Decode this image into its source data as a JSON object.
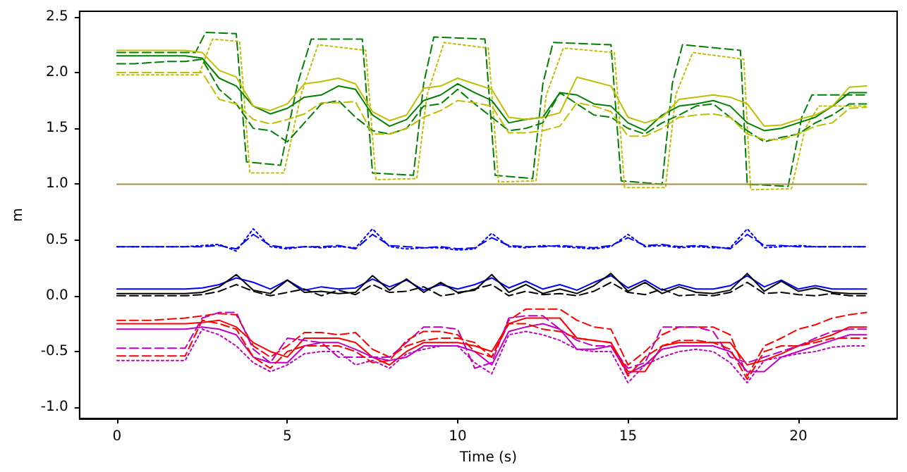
{
  "chart_data": {
    "type": "line",
    "xlabel": "Time (s)",
    "ylabel": "m",
    "xlim": [
      -1.1,
      22.9
    ],
    "ylim": [
      -1.1,
      2.55
    ],
    "xticks": [
      0,
      5,
      10,
      15,
      20
    ],
    "yticks": [
      {
        "value": -1,
        "label": "-1.0"
      },
      {
        "value": -0.5,
        "label": "-0.5"
      },
      {
        "value": 0,
        "label": "0.0"
      },
      {
        "value": 0.5,
        "label": "0.5"
      },
      {
        "value": 1,
        "label": "1.0"
      },
      {
        "value": 1.5,
        "label": "1.5"
      },
      {
        "value": 2,
        "label": "2.0"
      },
      {
        "value": 2.5,
        "label": "2.5"
      }
    ],
    "x": [
      0,
      0.5,
      1,
      1.5,
      2,
      2.5,
      3,
      3.5,
      4,
      4.5,
      5,
      5.5,
      6,
      6.5,
      7,
      7.5,
      8,
      8.5,
      9,
      9.5,
      10,
      10.5,
      11,
      11.5,
      12,
      12.5,
      13,
      13.5,
      14,
      14.5,
      15,
      15.5,
      16,
      16.5,
      17,
      17.5,
      18,
      18.5,
      19,
      19.5,
      20,
      20.5,
      21,
      21.5,
      22
    ],
    "series": [
      {
        "color": "#008000",
        "line_style": "dashed",
        "x": [
          0,
          2.3,
          2.6,
          3.5,
          3.8,
          4.8,
          5.3,
          5.7,
          7.2,
          7.5,
          8.7,
          9.0,
          9.3,
          10.8,
          11.1,
          12.2,
          12.5,
          12.8,
          14.5,
          14.8,
          16.0,
          16.3,
          16.6,
          18.3,
          18.5,
          19.7,
          20.1,
          20.4,
          22
        ],
        "values": [
          2.18,
          2.18,
          2.36,
          2.35,
          1.2,
          1.17,
          1.9,
          2.3,
          2.3,
          1.1,
          1.08,
          1.9,
          2.32,
          2.3,
          1.08,
          1.05,
          1.9,
          2.27,
          2.25,
          1.03,
          1.0,
          1.9,
          2.25,
          2.2,
          1.0,
          0.98,
          1.6,
          1.8,
          1.8
        ]
      },
      {
        "color": "#bfbf00",
        "line_style": "dotted",
        "x": [
          0,
          2.4,
          2.8,
          3.6,
          3.9,
          4.9,
          5.4,
          5.9,
          7.3,
          7.6,
          8.8,
          9.1,
          9.6,
          10.9,
          11.2,
          12.3,
          12.6,
          13.1,
          14.6,
          14.9,
          16.1,
          16.4,
          16.9,
          18.4,
          18.6,
          19.8,
          20.2,
          20.6,
          22
        ],
        "values": [
          1.98,
          1.98,
          2.3,
          2.28,
          1.1,
          1.1,
          1.8,
          2.25,
          2.2,
          1.04,
          1.05,
          1.8,
          2.27,
          2.22,
          1.02,
          1.03,
          1.8,
          2.22,
          2.18,
          0.97,
          0.97,
          1.8,
          2.18,
          2.12,
          0.95,
          0.96,
          1.5,
          1.7,
          1.7
        ]
      },
      {
        "color": "#008000",
        "line_style": "solid",
        "values": [
          2.15,
          2.15,
          2.15,
          2.15,
          2.15,
          2.13,
          1.95,
          1.88,
          1.7,
          1.63,
          1.68,
          1.78,
          1.8,
          1.88,
          1.85,
          1.62,
          1.52,
          1.58,
          1.75,
          1.8,
          1.9,
          1.82,
          1.75,
          1.55,
          1.58,
          1.6,
          1.82,
          1.8,
          1.72,
          1.7,
          1.55,
          1.48,
          1.62,
          1.7,
          1.72,
          1.75,
          1.7,
          1.55,
          1.48,
          1.5,
          1.55,
          1.6,
          1.7,
          1.82,
          1.82
        ]
      },
      {
        "color": "#bfbf00",
        "line_style": "solid",
        "values": [
          2.2,
          2.2,
          2.2,
          2.2,
          2.2,
          2.18,
          2.02,
          1.96,
          1.7,
          1.66,
          1.72,
          1.9,
          1.92,
          1.95,
          1.9,
          1.65,
          1.57,
          1.62,
          1.86,
          1.88,
          1.95,
          1.9,
          1.85,
          1.6,
          1.58,
          1.6,
          1.64,
          1.96,
          1.92,
          1.88,
          1.6,
          1.55,
          1.6,
          1.76,
          1.78,
          1.8,
          1.78,
          1.72,
          1.52,
          1.53,
          1.58,
          1.62,
          1.7,
          1.87,
          1.88
        ]
      },
      {
        "color": "#008000",
        "line_style": "dashed",
        "values": [
          2.08,
          2.08,
          2.09,
          2.1,
          2.1,
          2.12,
          1.85,
          1.72,
          1.5,
          1.48,
          1.38,
          1.55,
          1.72,
          1.75,
          1.6,
          1.48,
          1.45,
          1.5,
          1.7,
          1.72,
          1.85,
          1.72,
          1.6,
          1.48,
          1.5,
          1.55,
          1.82,
          1.72,
          1.62,
          1.6,
          1.5,
          1.45,
          1.55,
          1.62,
          1.7,
          1.72,
          1.6,
          1.48,
          1.38,
          1.42,
          1.45,
          1.55,
          1.62,
          1.72,
          1.72
        ]
      },
      {
        "color": "#bfbf00",
        "line_style": "dashed",
        "values": [
          2.0,
          2.0,
          2.0,
          2.0,
          2.0,
          2.0,
          1.76,
          1.72,
          1.58,
          1.54,
          1.58,
          1.63,
          1.73,
          1.73,
          1.74,
          1.45,
          1.45,
          1.5,
          1.6,
          1.66,
          1.75,
          1.73,
          1.7,
          1.46,
          1.46,
          1.48,
          1.52,
          1.73,
          1.7,
          1.65,
          1.43,
          1.43,
          1.5,
          1.6,
          1.62,
          1.63,
          1.6,
          1.45,
          1.4,
          1.4,
          1.45,
          1.52,
          1.55,
          1.68,
          1.69
        ]
      },
      {
        "color": "#a09040",
        "line_style": "solid",
        "x": [
          0,
          22
        ],
        "values": [
          1,
          1
        ]
      },
      {
        "color": "#0000ff",
        "line_style": "dotted",
        "values": [
          0.44,
          0.44,
          0.44,
          0.44,
          0.44,
          0.45,
          0.46,
          0.4,
          0.6,
          0.44,
          0.42,
          0.44,
          0.43,
          0.44,
          0.43,
          0.6,
          0.44,
          0.42,
          0.43,
          0.43,
          0.41,
          0.42,
          0.56,
          0.44,
          0.43,
          0.45,
          0.44,
          0.43,
          0.42,
          0.44,
          0.55,
          0.44,
          0.45,
          0.43,
          0.44,
          0.43,
          0.43,
          0.6,
          0.43,
          0.44,
          0.45,
          0.44,
          0.44,
          0.44,
          0.44
        ]
      },
      {
        "color": "#0000ff",
        "line_style": "dashed",
        "values": [
          0.44,
          0.44,
          0.44,
          0.44,
          0.44,
          0.44,
          0.45,
          0.42,
          0.55,
          0.45,
          0.43,
          0.44,
          0.44,
          0.45,
          0.42,
          0.55,
          0.45,
          0.44,
          0.43,
          0.44,
          0.42,
          0.43,
          0.52,
          0.45,
          0.44,
          0.44,
          0.45,
          0.44,
          0.43,
          0.45,
          0.52,
          0.45,
          0.46,
          0.44,
          0.45,
          0.44,
          0.42,
          0.55,
          0.45,
          0.45,
          0.44,
          0.44,
          0.44,
          0.44,
          0.44
        ]
      },
      {
        "color": "#0000ff",
        "line_style": "solid",
        "values": [
          0.06,
          0.06,
          0.06,
          0.06,
          0.06,
          0.07,
          0.1,
          0.16,
          0.12,
          0.06,
          0.14,
          0.05,
          0.08,
          0.06,
          0.07,
          0.15,
          0.08,
          0.14,
          0.05,
          0.1,
          0.06,
          0.1,
          0.16,
          0.07,
          0.13,
          0.06,
          0.1,
          0.05,
          0.12,
          0.18,
          0.07,
          0.14,
          0.05,
          0.1,
          0.06,
          0.06,
          0.09,
          0.18,
          0.08,
          0.14,
          0.06,
          0.09,
          0.06,
          0.06,
          0.06
        ]
      },
      {
        "color": "#000000",
        "line_style": "solid",
        "values": [
          0.02,
          0.02,
          0.02,
          0.02,
          0.02,
          0.03,
          0.08,
          0.19,
          0.05,
          0.02,
          0.14,
          0.03,
          0.04,
          0.02,
          0.03,
          0.18,
          0.05,
          0.15,
          0.03,
          0.12,
          0.03,
          0.05,
          0.19,
          0.03,
          0.1,
          0.02,
          0.06,
          0.02,
          0.09,
          0.2,
          0.04,
          0.12,
          0.02,
          0.08,
          0.03,
          0.02,
          0.05,
          0.2,
          0.04,
          0.13,
          0.04,
          0.07,
          0.03,
          0.02,
          0.02
        ]
      },
      {
        "color": "#000000",
        "line_style": "dashed",
        "values": [
          0.0,
          0.0,
          0.0,
          0.0,
          0.0,
          0.01,
          0.04,
          0.1,
          0.04,
          0.0,
          0.03,
          0.06,
          0.0,
          0.05,
          0.01,
          0.1,
          0.03,
          0.04,
          0.08,
          0.0,
          0.02,
          0.06,
          0.1,
          0.0,
          0.04,
          0.01,
          0.02,
          0.0,
          0.04,
          0.12,
          0.03,
          0.01,
          0.06,
          0.0,
          0.01,
          0.0,
          0.03,
          0.12,
          0.02,
          0.03,
          0.01,
          0.0,
          0.02,
          0.0,
          0.0
        ]
      },
      {
        "color": "#ff0000",
        "line_style": "dashed",
        "values": [
          -0.22,
          -0.22,
          -0.22,
          -0.21,
          -0.2,
          -0.18,
          -0.16,
          -0.17,
          -0.45,
          -0.55,
          -0.45,
          -0.33,
          -0.33,
          -0.35,
          -0.33,
          -0.48,
          -0.55,
          -0.45,
          -0.4,
          -0.38,
          -0.38,
          -0.42,
          -0.55,
          -0.22,
          -0.12,
          -0.12,
          -0.12,
          -0.22,
          -0.28,
          -0.3,
          -0.62,
          -0.5,
          -0.35,
          -0.28,
          -0.28,
          -0.28,
          -0.35,
          -0.72,
          -0.45,
          -0.38,
          -0.3,
          -0.26,
          -0.2,
          -0.17,
          -0.15
        ]
      },
      {
        "color": "#ff0000",
        "line_style": "solid",
        "values": [
          -0.25,
          -0.25,
          -0.25,
          -0.25,
          -0.25,
          -0.24,
          -0.22,
          -0.28,
          -0.42,
          -0.5,
          -0.55,
          -0.38,
          -0.38,
          -0.38,
          -0.42,
          -0.55,
          -0.62,
          -0.5,
          -0.42,
          -0.42,
          -0.42,
          -0.45,
          -0.5,
          -0.25,
          -0.2,
          -0.2,
          -0.2,
          -0.38,
          -0.4,
          -0.42,
          -0.68,
          -0.68,
          -0.45,
          -0.42,
          -0.42,
          -0.42,
          -0.42,
          -0.62,
          -0.58,
          -0.52,
          -0.45,
          -0.4,
          -0.35,
          -0.28,
          -0.28
        ]
      },
      {
        "color": "#c000c0",
        "line_style": "solid",
        "values": [
          -0.3,
          -0.3,
          -0.3,
          -0.3,
          -0.3,
          -0.28,
          -0.3,
          -0.35,
          -0.55,
          -0.6,
          -0.6,
          -0.45,
          -0.42,
          -0.42,
          -0.48,
          -0.55,
          -0.58,
          -0.55,
          -0.45,
          -0.45,
          -0.45,
          -0.5,
          -0.62,
          -0.32,
          -0.28,
          -0.25,
          -0.3,
          -0.48,
          -0.48,
          -0.45,
          -0.7,
          -0.62,
          -0.48,
          -0.45,
          -0.45,
          -0.45,
          -0.5,
          -0.68,
          -0.68,
          -0.55,
          -0.5,
          -0.45,
          -0.4,
          -0.35,
          -0.35
        ]
      },
      {
        "color": "#c000c0",
        "line_style": "dashed",
        "values": [
          -0.47,
          -0.47,
          -0.47,
          -0.47,
          -0.47,
          -0.2,
          -0.15,
          -0.15,
          -0.48,
          -0.6,
          -0.38,
          -0.4,
          -0.42,
          -0.55,
          -0.55,
          -0.55,
          -0.55,
          -0.42,
          -0.28,
          -0.28,
          -0.3,
          -0.65,
          -0.6,
          -0.2,
          -0.18,
          -0.18,
          -0.3,
          -0.4,
          -0.45,
          -0.45,
          -0.65,
          -0.6,
          -0.28,
          -0.28,
          -0.28,
          -0.32,
          -0.55,
          -0.6,
          -0.55,
          -0.5,
          -0.45,
          -0.38,
          -0.32,
          -0.3,
          -0.3
        ]
      },
      {
        "color": "#ff0000",
        "line_style": "dashed",
        "values": [
          -0.54,
          -0.54,
          -0.54,
          -0.54,
          -0.54,
          -0.22,
          -0.25,
          -0.3,
          -0.55,
          -0.65,
          -0.5,
          -0.45,
          -0.45,
          -0.45,
          -0.5,
          -0.6,
          -0.58,
          -0.4,
          -0.32,
          -0.32,
          -0.35,
          -0.5,
          -0.55,
          -0.25,
          -0.25,
          -0.3,
          -0.32,
          -0.38,
          -0.4,
          -0.42,
          -0.72,
          -0.55,
          -0.45,
          -0.4,
          -0.4,
          -0.42,
          -0.48,
          -0.75,
          -0.5,
          -0.45,
          -0.45,
          -0.42,
          -0.38,
          -0.38,
          -0.38
        ]
      },
      {
        "color": "#c000c0",
        "line_style": "dotted",
        "values": [
          -0.58,
          -0.58,
          -0.58,
          -0.58,
          -0.58,
          -0.3,
          -0.35,
          -0.45,
          -0.6,
          -0.68,
          -0.62,
          -0.52,
          -0.5,
          -0.5,
          -0.62,
          -0.58,
          -0.65,
          -0.52,
          -0.48,
          -0.45,
          -0.45,
          -0.6,
          -0.7,
          -0.35,
          -0.32,
          -0.35,
          -0.4,
          -0.48,
          -0.5,
          -0.5,
          -0.78,
          -0.62,
          -0.55,
          -0.5,
          -0.48,
          -0.5,
          -0.6,
          -0.78,
          -0.58,
          -0.55,
          -0.52,
          -0.5,
          -0.46,
          -0.45,
          -0.45
        ]
      }
    ]
  }
}
